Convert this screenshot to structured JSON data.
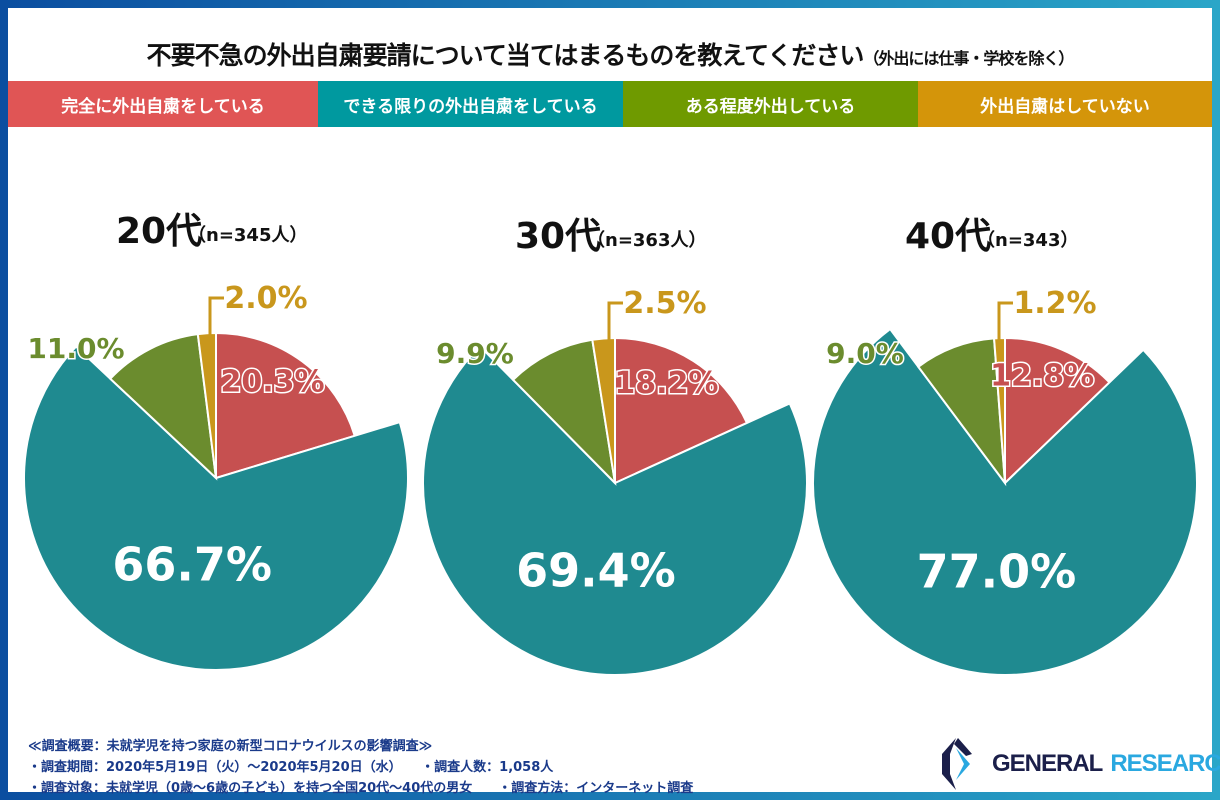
{
  "title": "不要不急の外出自粛要請について当てはまるものを教えてください",
  "subtitle": "（外出には仕事・学校を除く）",
  "chart_data": {
    "type": "pie",
    "categories": [
      "完全に外出自粛をしている",
      "できる限りの外出自粛をしている",
      "ある程度外出している",
      "外出自粛はしていない"
    ],
    "colors": [
      "#c65050",
      "#1f8a90",
      "#6b8c2e",
      "#c9971c"
    ],
    "legend_colors": [
      "#e05555",
      "#00999f",
      "#6f9a00",
      "#d4950a"
    ],
    "legend_placement": "top",
    "charts": [
      {
        "title": "20代",
        "n": "（n=345人）",
        "values": [
          20.3,
          66.7,
          11.0,
          2.0
        ],
        "labels": [
          "20.3%",
          "66.7%",
          "11.0%",
          "2.0%"
        ]
      },
      {
        "title": "30代",
        "n": "（n=363人）",
        "values": [
          18.2,
          69.4,
          9.9,
          2.5
        ],
        "labels": [
          "18.2%",
          "69.4%",
          "9.9%",
          "2.5%"
        ]
      },
      {
        "title": "40代",
        "n": "（n=343）",
        "values": [
          12.8,
          77.0,
          9.0,
          1.2
        ],
        "labels": [
          "12.8%",
          "77.0%",
          "9.0%",
          "1.2%"
        ]
      }
    ]
  },
  "footer": {
    "line1": "≪調査概要：未就学児を持つ家庭の新型コロナウイルスの影響調査≫",
    "line2a": "・調査期間：2020年5月19日（火）～2020年5月20日（水）",
    "line2b": "・調査人数：1,058人",
    "line3a": "・調査対象：未就学児（0歳～6歳の子ども）を持つ全国20代～40代の男女",
    "line3b": "・調査方法：インターネット調査"
  },
  "logo": {
    "word1": "GENERAL",
    "word2": "RESEARCH"
  }
}
